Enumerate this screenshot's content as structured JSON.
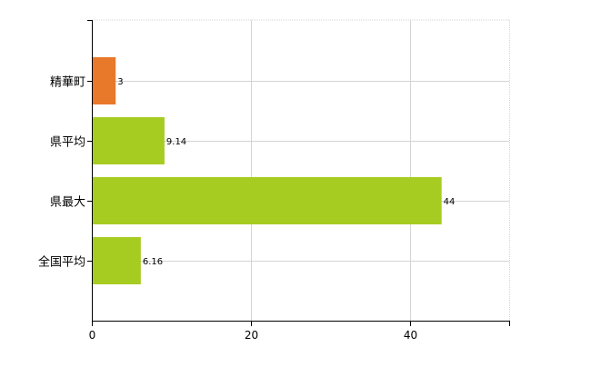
{
  "chart_data": {
    "type": "bar",
    "orientation": "horizontal",
    "categories": [
      "精華町",
      "県平均",
      "県最大",
      "全国平均"
    ],
    "values": [
      3,
      9.14,
      44,
      6.16
    ],
    "value_labels": [
      "3",
      "9.14",
      "44",
      "6.16"
    ],
    "x_ticks": [
      0,
      20,
      40
    ],
    "x_tick_labels": [
      "0",
      "20",
      "40"
    ],
    "xlim": [
      0,
      52.5
    ],
    "grid": true,
    "legend": "none",
    "colors": {
      "highlight": "#e8782a",
      "default": "#a7cc21",
      "grid": "#d4d4d4",
      "axis": "#000000"
    },
    "bar_colors": [
      "#e8782a",
      "#a7cc21",
      "#a7cc21",
      "#a7cc21"
    ]
  }
}
